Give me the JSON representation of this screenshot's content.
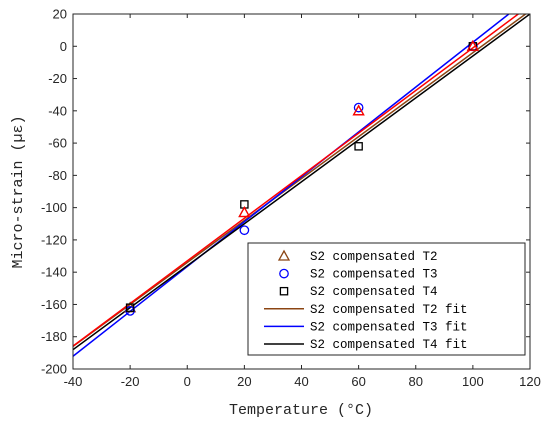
{
  "chart_data": {
    "type": "scatter",
    "title": "",
    "xlabel": "Temperature (°C)",
    "ylabel": "Micro-strain (µε)",
    "xlim": [
      -40,
      120
    ],
    "ylim": [
      -200,
      20
    ],
    "xticks": [
      -40,
      -20,
      0,
      20,
      40,
      60,
      80,
      100,
      120
    ],
    "yticks": [
      -200,
      -180,
      -160,
      -140,
      -120,
      -100,
      -80,
      -60,
      -40,
      -20,
      0,
      20
    ],
    "grid": false,
    "legend_position": "bottom-right",
    "scatter_series": [
      {
        "name": "S2 compensated T2",
        "marker": "triangle",
        "color": "#8B4513",
        "points": [
          [
            -20,
            -162
          ],
          [
            20,
            -103
          ],
          [
            60,
            -40
          ],
          [
            100,
            0
          ]
        ]
      },
      {
        "name": "S2 compensated T3",
        "marker": "circle",
        "color": "#0000FF",
        "points": [
          [
            -20,
            -164
          ],
          [
            20,
            -114
          ],
          [
            60,
            -38
          ],
          [
            100,
            0
          ]
        ]
      },
      {
        "name": "S2 compensated T4",
        "marker": "square",
        "color": "#000000",
        "points": [
          [
            -20,
            -162
          ],
          [
            20,
            -98
          ],
          [
            60,
            -62
          ],
          [
            100,
            0
          ]
        ]
      }
    ],
    "fit_series": [
      {
        "name": "S2 compensated T2 fit",
        "color": "#8B4513",
        "slope": 1.3,
        "intercept": -134
      },
      {
        "name": "S2 compensated T3 fit",
        "color": "#0000FF",
        "slope": 1.39,
        "intercept": -136.5
      },
      {
        "name": "S2 compensated T4 fit",
        "color": "#000000",
        "slope": 1.3,
        "intercept": -136
      }
    ],
    "overlay_series": [
      {
        "color": "#FF0000",
        "slope": 1.32,
        "intercept": -133,
        "triangle_points": [
          [
            20,
            -103
          ],
          [
            60,
            -40
          ],
          [
            100,
            0
          ]
        ]
      }
    ]
  }
}
